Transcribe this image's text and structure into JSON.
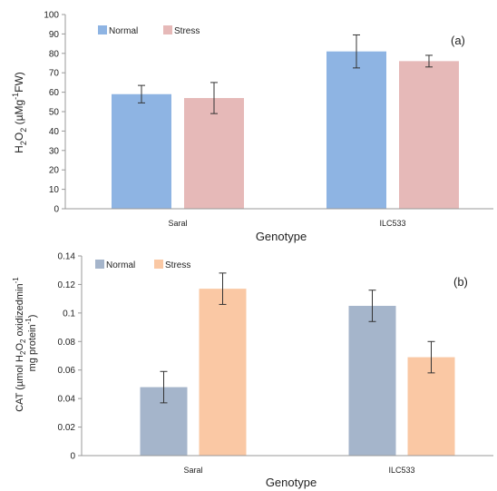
{
  "chart_data": [
    {
      "type": "bar",
      "panel_label": "(a)",
      "categories": [
        "Saral",
        "ILC533"
      ],
      "series": [
        {
          "name": "Normal",
          "color": "#8eb4e3",
          "values": [
            59,
            81
          ],
          "errors": [
            4.5,
            8.5
          ]
        },
        {
          "name": "Stress",
          "color": "#e6b9b8",
          "values": [
            57,
            76
          ],
          "errors": [
            8,
            3
          ]
        }
      ],
      "xlabel": "Genotype",
      "ylabel": {
        "prefix": "H",
        "sub1": "2",
        "mid": "O",
        "sub2": "2",
        "open": " (µMg",
        "sup": "-1",
        "close": "FW)"
      },
      "ylim": [
        0,
        100
      ],
      "yticks": [
        "0",
        "10",
        "20",
        "30",
        "40",
        "50",
        "60",
        "70",
        "80",
        "90",
        "100"
      ],
      "legend_position": "top-left",
      "grid": false
    },
    {
      "type": "bar",
      "panel_label": "(b)",
      "categories": [
        "Saral",
        "ILC533"
      ],
      "series": [
        {
          "name": "Normal",
          "color": "#a5b5cb",
          "values": [
            0.048,
            0.105
          ],
          "errors": [
            0.011,
            0.011
          ]
        },
        {
          "name": "Stress",
          "color": "#fac8a4",
          "values": [
            0.117,
            0.069
          ],
          "errors": [
            0.011,
            0.011
          ]
        }
      ],
      "xlabel": "Genotype",
      "ylabel": {
        "line1_a": "CAT (µmol H",
        "line1_sub1": "2",
        "line1_b": "O",
        "line1_sub2": "2",
        "line1_c": " oxidizedmin",
        "line1_sup": "-1",
        "line2_a": "mg protein",
        "line2_sup": "-1",
        "line2_b": ")"
      },
      "ylim": [
        0,
        0.14
      ],
      "yticks": [
        "0",
        "0.02",
        "0.04",
        "0.06",
        "0.08",
        "0.1",
        "0.12",
        "0.14"
      ],
      "legend_position": "top-left",
      "grid": false
    }
  ]
}
